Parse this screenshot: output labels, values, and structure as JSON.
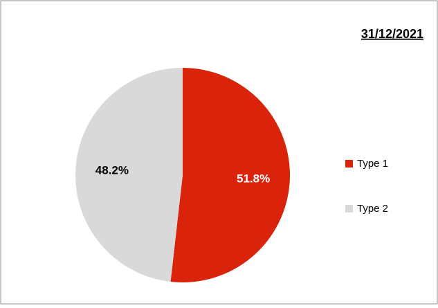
{
  "chart_data": {
    "type": "pie",
    "title": "31/12/2021",
    "categories": [
      "Type 1",
      "Type 2"
    ],
    "values": [
      51.8,
      48.2
    ],
    "value_labels": [
      "51.8%",
      "48.2%"
    ],
    "colors": [
      "#d9230b",
      "#d9d9d9"
    ],
    "label_colors": [
      "#ffffff",
      "#000000"
    ],
    "legend": "right"
  }
}
